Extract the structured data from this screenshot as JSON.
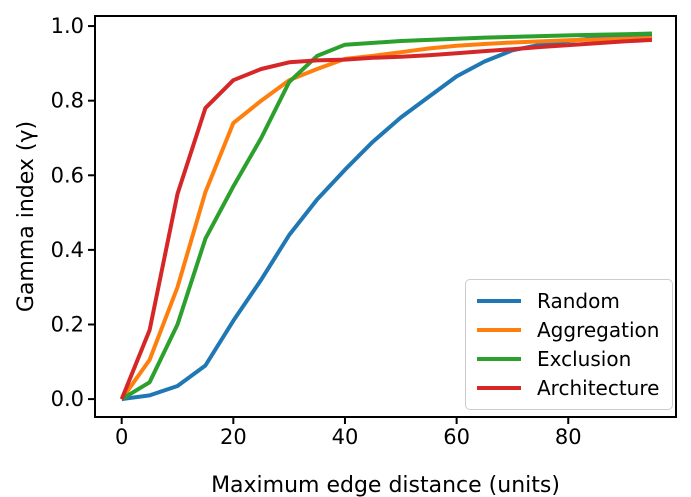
{
  "chart_data": {
    "type": "line",
    "title": "",
    "xlabel": "Maximum edge distance (units)",
    "ylabel": "Gamma index (γ)",
    "xlim": [
      -4.78,
      99.3
    ],
    "ylim": [
      -0.048,
      1.027
    ],
    "grid": false,
    "x_ticks": {
      "values": [
        0,
        20,
        40,
        60,
        80
      ],
      "labels": [
        "0",
        "20",
        "40",
        "60",
        "80"
      ]
    },
    "y_ticks": {
      "values": [
        0.0,
        0.2,
        0.4,
        0.6,
        0.8,
        1.0
      ],
      "labels": [
        "0.0",
        "0.2",
        "0.4",
        "0.6",
        "0.8",
        "1.0"
      ]
    },
    "legend": {
      "position": "lower right"
    },
    "x": [
      0,
      5,
      10,
      15,
      20,
      25,
      30,
      35,
      40,
      45,
      50,
      55,
      60,
      65,
      70,
      75,
      80,
      85,
      90,
      95
    ],
    "series": [
      {
        "name": "Random",
        "color": "#1f77b4",
        "values": [
          0.0,
          0.01,
          0.035,
          0.09,
          0.21,
          0.32,
          0.44,
          0.535,
          0.615,
          0.69,
          0.755,
          0.81,
          0.865,
          0.905,
          0.935,
          0.95,
          0.96,
          0.968,
          0.972,
          0.975
        ]
      },
      {
        "name": "Aggregation",
        "color": "#ff7f0e",
        "values": [
          0.0,
          0.105,
          0.3,
          0.555,
          0.74,
          0.8,
          0.855,
          0.885,
          0.912,
          0.92,
          0.93,
          0.94,
          0.947,
          0.952,
          0.956,
          0.959,
          0.962,
          0.964,
          0.966,
          0.968
        ]
      },
      {
        "name": "Exclusion",
        "color": "#2ca02c",
        "values": [
          0.0,
          0.045,
          0.2,
          0.43,
          0.57,
          0.7,
          0.85,
          0.92,
          0.95,
          0.955,
          0.96,
          0.963,
          0.966,
          0.969,
          0.971,
          0.973,
          0.975,
          0.977,
          0.978,
          0.98
        ]
      },
      {
        "name": "Architecture",
        "color": "#d62728",
        "values": [
          0.0,
          0.185,
          0.55,
          0.78,
          0.855,
          0.885,
          0.903,
          0.908,
          0.91,
          0.915,
          0.918,
          0.922,
          0.927,
          0.933,
          0.938,
          0.944,
          0.949,
          0.954,
          0.959,
          0.963
        ]
      }
    ]
  }
}
